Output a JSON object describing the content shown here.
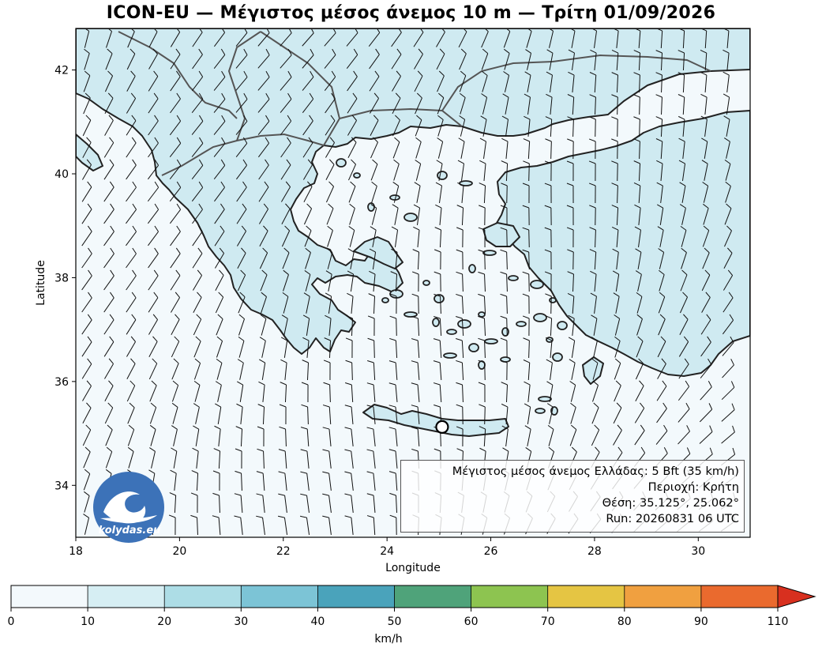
{
  "title": "ICON-EU — Μέγιστος μέσος άνεμος 10 m — Τρίτη 01/09/2026",
  "map": {
    "xlabel": "Longitude",
    "ylabel": "Latitude",
    "lon_range": [
      18,
      31
    ],
    "lat_range": [
      33,
      42.8
    ],
    "x_ticks": [
      "18",
      "20",
      "22",
      "24",
      "26",
      "28",
      "30"
    ],
    "y_ticks": [
      "34",
      "36",
      "38",
      "40",
      "42"
    ],
    "marker": {
      "lat": 35.125,
      "lon": 25.062
    },
    "land_color": "#cfeaf1",
    "sea_color": "#f3f9fc",
    "coast_color": "#222222",
    "border_color": "#555555"
  },
  "info": {
    "line1": "Μέγιστος μέσος άνεμος Ελλάδας: 5 Bft (35 km/h)",
    "line2": "Περιοχή: Κρήτη",
    "line3": "Θέση: 35.125°, 25.062°",
    "line4": "Run: 20260831 06 UTC"
  },
  "logo": {
    "text": "kolydas.eu",
    "color": "#3c72b8"
  },
  "colorbar": {
    "label": "km/h",
    "ticks": [
      "0",
      "10",
      "20",
      "30",
      "40",
      "50",
      "60",
      "70",
      "80",
      "90",
      "110"
    ],
    "colors": [
      "#f3f9fc",
      "#d6eef3",
      "#addde6",
      "#7cc4d6",
      "#4aa3bb",
      "#4fa37a",
      "#8dc450",
      "#e5c543",
      "#f0a040",
      "#ea6a2e",
      "#d8301f"
    ]
  }
}
